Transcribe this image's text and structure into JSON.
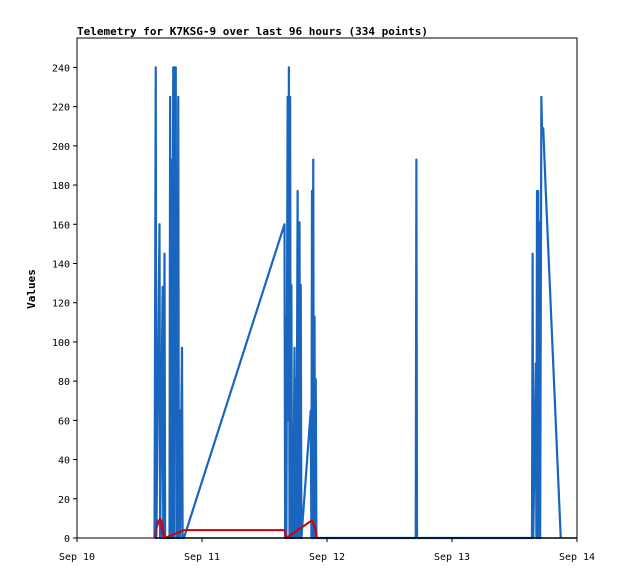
{
  "chart_data": {
    "type": "line",
    "title": "Telemetry for K7KSG-9 over last 96 hours (334 points)",
    "ylabel": "Values",
    "xlabel": "",
    "ylim": [
      0,
      255
    ],
    "xlim": [
      0,
      4
    ],
    "x_ticks": [
      {
        "value": 0,
        "label": "Sep 10"
      },
      {
        "value": 1,
        "label": "Sep 11"
      },
      {
        "value": 2,
        "label": "Sep 12"
      },
      {
        "value": 3,
        "label": "Sep 13"
      },
      {
        "value": 4,
        "label": "Sep 14"
      }
    ],
    "y_ticks": [
      0,
      20,
      40,
      60,
      80,
      100,
      120,
      140,
      160,
      180,
      200,
      220,
      240
    ],
    "grid": false,
    "legend": "none",
    "colors": {
      "series_blue": "#1a66bf",
      "series_red": "#d40000",
      "series_purple": "#8a1f6b"
    },
    "series": [
      {
        "color": "#1a66bf",
        "points": [
          [
            0.62,
            0
          ],
          [
            0.63,
            240
          ],
          [
            0.635,
            0
          ],
          [
            0.66,
            160
          ],
          [
            0.665,
            0
          ],
          [
            0.685,
            128
          ],
          [
            0.69,
            0
          ],
          [
            0.7,
            145
          ],
          [
            0.705,
            0
          ],
          [
            0.74,
            0
          ],
          [
            0.745,
            225
          ],
          [
            0.75,
            0
          ],
          [
            0.755,
            193
          ],
          [
            0.76,
            0
          ],
          [
            0.77,
            240
          ],
          [
            0.775,
            0
          ],
          [
            0.78,
            240
          ],
          [
            0.785,
            60
          ],
          [
            0.79,
            240
          ],
          [
            0.795,
            0
          ],
          [
            0.8,
            113
          ],
          [
            0.805,
            0
          ],
          [
            0.81,
            225
          ],
          [
            0.815,
            0
          ],
          [
            0.82,
            65
          ],
          [
            0.825,
            0
          ],
          [
            0.84,
            97
          ],
          [
            0.845,
            0
          ],
          [
            0.855,
            0
          ],
          [
            1.66,
            160
          ],
          [
            1.665,
            0
          ],
          [
            1.67,
            113
          ],
          [
            1.675,
            0
          ],
          [
            1.685,
            225
          ],
          [
            1.69,
            60
          ],
          [
            1.695,
            240
          ],
          [
            1.7,
            0
          ],
          [
            1.705,
            225
          ],
          [
            1.71,
            0
          ],
          [
            1.715,
            129
          ],
          [
            1.72,
            0
          ],
          [
            1.725,
            49
          ],
          [
            1.73,
            0
          ],
          [
            1.74,
            97
          ],
          [
            1.745,
            0
          ],
          [
            1.75,
            81
          ],
          [
            1.755,
            0
          ],
          [
            1.765,
            177
          ],
          [
            1.77,
            0
          ],
          [
            1.78,
            161
          ],
          [
            1.785,
            0
          ],
          [
            1.79,
            129
          ],
          [
            1.795,
            0
          ],
          [
            1.87,
            65
          ],
          [
            1.875,
            0
          ],
          [
            1.88,
            177
          ],
          [
            1.885,
            0
          ],
          [
            1.89,
            193
          ],
          [
            1.895,
            0
          ],
          [
            1.9,
            113
          ],
          [
            1.905,
            0
          ],
          [
            1.91,
            81
          ],
          [
            1.915,
            0
          ],
          [
            2.71,
            0
          ],
          [
            2.715,
            193
          ],
          [
            2.72,
            0
          ],
          [
            3.64,
            0
          ],
          [
            3.645,
            145
          ],
          [
            3.65,
            0
          ],
          [
            3.67,
            89
          ],
          [
            3.675,
            0
          ],
          [
            3.68,
            177
          ],
          [
            3.685,
            0
          ],
          [
            3.69,
            177
          ],
          [
            3.695,
            0
          ],
          [
            3.7,
            161
          ],
          [
            3.705,
            0
          ],
          [
            3.715,
            225
          ],
          [
            3.72,
            209
          ],
          [
            3.73,
            209
          ],
          [
            3.74,
            193
          ],
          [
            3.75,
            177
          ],
          [
            3.87,
            0
          ]
        ]
      },
      {
        "color": "#d40000",
        "points": [
          [
            0.62,
            0
          ],
          [
            0.64,
            6
          ],
          [
            0.665,
            10
          ],
          [
            0.68,
            8
          ],
          [
            0.7,
            0
          ],
          [
            0.855,
            4
          ],
          [
            1.66,
            4
          ],
          [
            1.675,
            0
          ],
          [
            1.88,
            9
          ],
          [
            1.9,
            6
          ],
          [
            1.92,
            0
          ]
        ]
      },
      {
        "color": "#8a1f6b",
        "points": [
          [
            0.625,
            0
          ],
          [
            0.64,
            8
          ],
          [
            0.655,
            9
          ],
          [
            0.67,
            7
          ],
          [
            0.685,
            0
          ]
        ]
      }
    ]
  }
}
